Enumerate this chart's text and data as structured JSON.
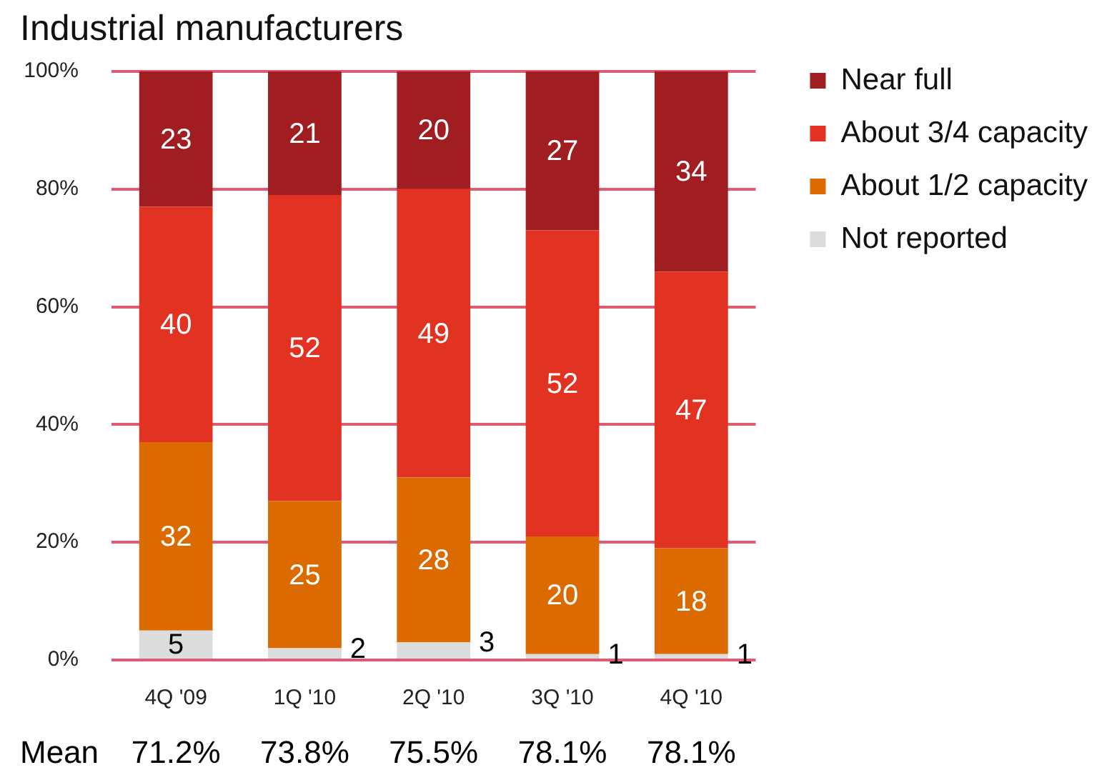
{
  "chart_data": {
    "type": "bar",
    "title": "Industrial manufacturers",
    "categories": [
      "4Q '09",
      "1Q '10",
      "2Q '10",
      "3Q '10",
      "4Q '10"
    ],
    "stacked": true,
    "series": [
      {
        "name": "Not reported",
        "color": "#dcdcdc",
        "values": [
          5,
          2,
          3,
          1,
          1
        ]
      },
      {
        "name": "About 1/2 capacity",
        "color": "#db6a00",
        "values": [
          32,
          25,
          28,
          20,
          18
        ]
      },
      {
        "name": "About 3/4 capacity",
        "color": "#e23222",
        "values": [
          40,
          52,
          49,
          52,
          47
        ]
      },
      {
        "name": "Near full",
        "color": "#a01e21",
        "values": [
          23,
          21,
          20,
          27,
          34
        ]
      }
    ],
    "ylim": [
      0,
      100
    ],
    "yticks": [
      {
        "value": 0,
        "label": "0%"
      },
      {
        "value": 20,
        "label": "20%"
      },
      {
        "value": 40,
        "label": "40%"
      },
      {
        "value": 60,
        "label": "60%"
      },
      {
        "value": 80,
        "label": "80%"
      },
      {
        "value": 100,
        "label": "100%"
      }
    ],
    "grid": "y",
    "legend": "top right",
    "data_labels": true,
    "annotations": [
      "Mean",
      "71.2%",
      "73.8%",
      "75.5%",
      "78.1%",
      "78.1%"
    ]
  }
}
